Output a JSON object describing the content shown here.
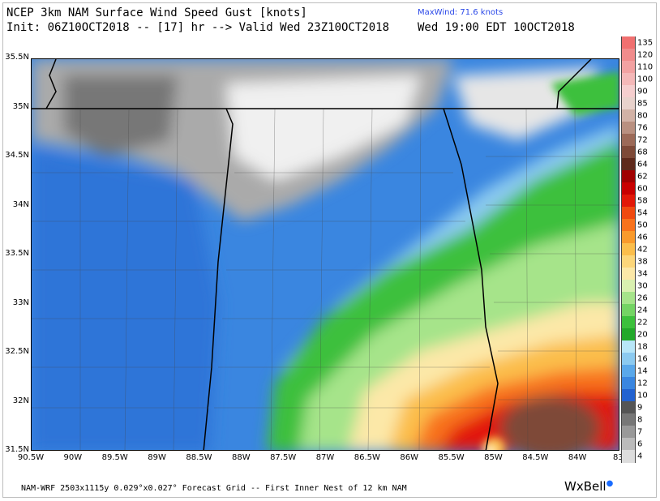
{
  "header": {
    "title": "NCEP 3km NAM Surface Wind Speed Gust [knots]",
    "init": "Init: 06Z10OCT2018 -- [17] hr --> Valid Wed 23Z10OCT2018",
    "maxwind": "MaxWind: 71.6 knots",
    "valid_local": "Wed 19:00 EDT 10OCT2018"
  },
  "map": {
    "lat_labels": [
      "35.5N",
      "35N",
      "34.5N",
      "34N",
      "33.5N",
      "33N",
      "32.5N",
      "32N",
      "31.5N"
    ],
    "lon_labels": [
      "90.5W",
      "90W",
      "89.5W",
      "89W",
      "88.5W",
      "88W",
      "87.5W",
      "87W",
      "86.5W",
      "86W",
      "85.5W",
      "85W",
      "84.5W",
      "84W",
      "83."
    ]
  },
  "colorbar": {
    "units": "knots",
    "levels": [
      {
        "label": "135",
        "color": "#f07070"
      },
      {
        "label": "120",
        "color": "#f08c8c"
      },
      {
        "label": "110",
        "color": "#f2a2a2"
      },
      {
        "label": "100",
        "color": "#f4b8b8"
      },
      {
        "label": "90",
        "color": "#f5cece"
      },
      {
        "label": "85",
        "color": "#e8d2cc"
      },
      {
        "label": "80",
        "color": "#d2b2a6"
      },
      {
        "label": "76",
        "color": "#b99080"
      },
      {
        "label": "72",
        "color": "#9c6a58"
      },
      {
        "label": "68",
        "color": "#7e4a38"
      },
      {
        "label": "64",
        "color": "#5e2a1c"
      },
      {
        "label": "62",
        "color": "#a00000"
      },
      {
        "label": "60",
        "color": "#c80000"
      },
      {
        "label": "58",
        "color": "#e21808"
      },
      {
        "label": "54",
        "color": "#f04a10"
      },
      {
        "label": "50",
        "color": "#f8721c"
      },
      {
        "label": "46",
        "color": "#f99a2c"
      },
      {
        "label": "42",
        "color": "#fbbe4c"
      },
      {
        "label": "38",
        "color": "#fcd67a"
      },
      {
        "label": "34",
        "color": "#fce8a8"
      },
      {
        "label": "30",
        "color": "#d9f0b0"
      },
      {
        "label": "26",
        "color": "#a6e48a"
      },
      {
        "label": "24",
        "color": "#74d464"
      },
      {
        "label": "22",
        "color": "#3cc03c"
      },
      {
        "label": "20",
        "color": "#22a82a"
      },
      {
        "label": "18",
        "color": "#b8e6f8"
      },
      {
        "label": "16",
        "color": "#8ccaf0"
      },
      {
        "label": "14",
        "color": "#5aa8ea"
      },
      {
        "label": "12",
        "color": "#3a86e0"
      },
      {
        "label": "10",
        "color": "#2262d0"
      },
      {
        "label": "9",
        "color": "#555555"
      },
      {
        "label": "8",
        "color": "#777777"
      },
      {
        "label": "7",
        "color": "#999999"
      },
      {
        "label": "6",
        "color": "#bbbbbb"
      },
      {
        "label": "4",
        "color": "#dddddd"
      }
    ]
  },
  "footer": {
    "text": "NAM-WRF 2503x1115y 0.029°x0.027° Forecast Grid -- First Inner Nest of 12 km NAM",
    "brand": "WxBell"
  }
}
